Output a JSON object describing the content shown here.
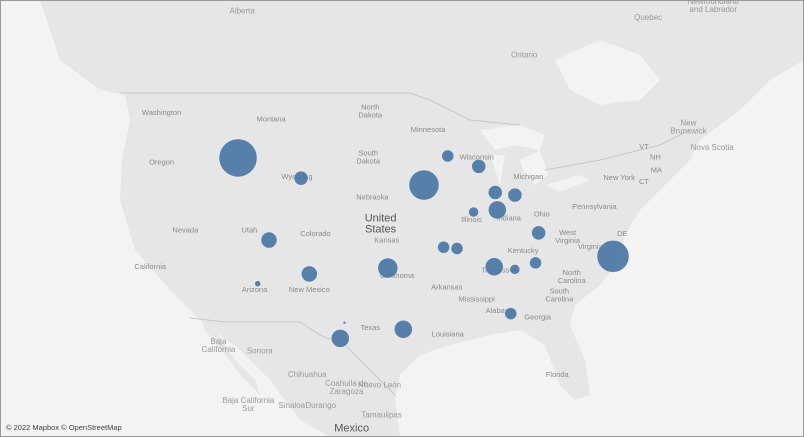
{
  "map": {
    "labels": [
      {
        "text": "Alberta",
        "lon": -111.6,
        "lat": 55.3,
        "kind": "region"
      },
      {
        "text": "Quebec",
        "lon": -72.3,
        "lat": 54.8,
        "kind": "region"
      },
      {
        "text": "Newfoundland\nand Labrador",
        "lon": -66.0,
        "lat": 55.7,
        "kind": "region"
      },
      {
        "text": "Ontario",
        "lon": -84.3,
        "lat": 51.9,
        "kind": "region"
      },
      {
        "text": "New\nBrunswick",
        "lon": -68.4,
        "lat": 46.4,
        "kind": "region"
      },
      {
        "text": "Nova Scotia",
        "lon": -66.1,
        "lat": 44.8,
        "kind": "region"
      },
      {
        "text": "Washington",
        "lon": -119.4,
        "lat": 47.5,
        "kind": "state"
      },
      {
        "text": "Montana",
        "lon": -108.8,
        "lat": 47.0,
        "kind": "state"
      },
      {
        "text": "North\nDakota",
        "lon": -99.2,
        "lat": 47.6,
        "kind": "state"
      },
      {
        "text": "Minnesota",
        "lon": -93.6,
        "lat": 46.2,
        "kind": "state"
      },
      {
        "text": "Oregon",
        "lon": -119.4,
        "lat": 43.7,
        "kind": "state"
      },
      {
        "text": "South\nDakota",
        "lon": -99.4,
        "lat": 44.1,
        "kind": "state"
      },
      {
        "text": "Wisconsin",
        "lon": -88.9,
        "lat": 44.1,
        "kind": "state"
      },
      {
        "text": "Michigan",
        "lon": -83.9,
        "lat": 42.6,
        "kind": "state"
      },
      {
        "text": "Wyoming",
        "lon": -106.3,
        "lat": 42.6,
        "kind": "state"
      },
      {
        "text": "Nebraska",
        "lon": -99.0,
        "lat": 41.0,
        "kind": "state"
      },
      {
        "text": "New York",
        "lon": -75.1,
        "lat": 42.5,
        "kind": "state"
      },
      {
        "text": "Pennsylvania",
        "lon": -77.5,
        "lat": 40.3,
        "kind": "state"
      },
      {
        "text": "Illinois",
        "lon": -89.4,
        "lat": 39.3,
        "kind": "state"
      },
      {
        "text": "Indiana",
        "lon": -85.8,
        "lat": 39.4,
        "kind": "state"
      },
      {
        "text": "Ohio",
        "lon": -82.6,
        "lat": 39.7,
        "kind": "state"
      },
      {
        "text": "Nevada",
        "lon": -117.1,
        "lat": 38.5,
        "kind": "state"
      },
      {
        "text": "Utah",
        "lon": -110.9,
        "lat": 38.5,
        "kind": "state"
      },
      {
        "text": "Colorado",
        "lon": -104.5,
        "lat": 38.2,
        "kind": "state"
      },
      {
        "text": "United\nStates",
        "lon": -98.2,
        "lat": 39.0,
        "kind": "country"
      },
      {
        "text": "Kansas",
        "lon": -97.6,
        "lat": 37.7,
        "kind": "state"
      },
      {
        "text": "Kentucky",
        "lon": -84.4,
        "lat": 36.9,
        "kind": "state"
      },
      {
        "text": "West\nVirginia",
        "lon": -80.1,
        "lat": 38.0,
        "kind": "state"
      },
      {
        "text": "Virginia",
        "lon": -77.9,
        "lat": 37.2,
        "kind": "state"
      },
      {
        "text": "California",
        "lon": -120.5,
        "lat": 35.7,
        "kind": "state"
      },
      {
        "text": "Oklahoma",
        "lon": -96.6,
        "lat": 35.0,
        "kind": "state"
      },
      {
        "text": "Tennessee",
        "lon": -86.7,
        "lat": 35.4,
        "kind": "state"
      },
      {
        "text": "North\nCarolina",
        "lon": -79.7,
        "lat": 34.9,
        "kind": "state"
      },
      {
        "text": "Arizona",
        "lon": -110.4,
        "lat": 33.9,
        "kind": "state"
      },
      {
        "text": "New Mexico",
        "lon": -105.1,
        "lat": 33.9,
        "kind": "state"
      },
      {
        "text": "Arkansas",
        "lon": -91.8,
        "lat": 34.1,
        "kind": "state"
      },
      {
        "text": "South\nCarolina",
        "lon": -80.9,
        "lat": 33.5,
        "kind": "state"
      },
      {
        "text": "Mississippi",
        "lon": -88.9,
        "lat": 33.2,
        "kind": "state"
      },
      {
        "text": "Alabama",
        "lon": -86.6,
        "lat": 32.3,
        "kind": "state"
      },
      {
        "text": "Georgia",
        "lon": -83.0,
        "lat": 31.8,
        "kind": "state"
      },
      {
        "text": "Texas",
        "lon": -99.2,
        "lat": 31.0,
        "kind": "state"
      },
      {
        "text": "Louisiana",
        "lon": -91.7,
        "lat": 30.5,
        "kind": "state"
      },
      {
        "text": "Florida",
        "lon": -81.1,
        "lat": 27.4,
        "kind": "state"
      },
      {
        "text": "VT",
        "lon": -72.7,
        "lat": 44.9,
        "kind": "state"
      },
      {
        "text": "NH",
        "lon": -71.6,
        "lat": 44.1,
        "kind": "state"
      },
      {
        "text": "MA",
        "lon": -71.5,
        "lat": 43.1,
        "kind": "state"
      },
      {
        "text": "CT",
        "lon": -72.7,
        "lat": 42.2,
        "kind": "state"
      },
      {
        "text": "DE",
        "lon": -74.8,
        "lat": 38.2,
        "kind": "state"
      },
      {
        "text": "Baja\nCalifornia",
        "lon": -113.9,
        "lat": 29.6,
        "kind": "region"
      },
      {
        "text": "Sonora",
        "lon": -109.9,
        "lat": 29.2,
        "kind": "region"
      },
      {
        "text": "Chihuahua",
        "lon": -105.3,
        "lat": 27.4,
        "kind": "region"
      },
      {
        "text": "Coahuila de\nZaragoza",
        "lon": -101.5,
        "lat": 26.4,
        "kind": "region"
      },
      {
        "text": "Nuevo León",
        "lon": -98.3,
        "lat": 26.6,
        "kind": "region"
      },
      {
        "text": "Baja California\nSur",
        "lon": -111.0,
        "lat": 25.1,
        "kind": "region"
      },
      {
        "text": "Sinaloa",
        "lon": -106.8,
        "lat": 25.0,
        "kind": "region"
      },
      {
        "text": "Durango",
        "lon": -104.0,
        "lat": 25.0,
        "kind": "region"
      },
      {
        "text": "Tamaulipas",
        "lon": -98.1,
        "lat": 24.3,
        "kind": "region"
      },
      {
        "text": "Mexico",
        "lon": -101.0,
        "lat": 23.3,
        "kind": "country"
      }
    ],
    "bubbles": [
      {
        "lon": -112.0,
        "lat": 44.05,
        "size": 361
      },
      {
        "lon": -105.9,
        "lat": 42.5,
        "size": 49
      },
      {
        "lon": -109.0,
        "lat": 37.75,
        "size": 64
      },
      {
        "lon": -105.1,
        "lat": 35.15,
        "size": 64
      },
      {
        "lon": -110.1,
        "lat": 34.4,
        "size": 9
      },
      {
        "lon": -94.0,
        "lat": 41.97,
        "size": 225
      },
      {
        "lon": -91.7,
        "lat": 44.2,
        "size": 36
      },
      {
        "lon": -88.7,
        "lat": 43.4,
        "size": 49
      },
      {
        "lon": -87.1,
        "lat": 41.4,
        "size": 49
      },
      {
        "lon": -85.2,
        "lat": 41.2,
        "size": 49
      },
      {
        "lon": -89.2,
        "lat": 39.9,
        "size": 25
      },
      {
        "lon": -86.9,
        "lat": 40.06,
        "size": 81
      },
      {
        "lon": -82.9,
        "lat": 38.3,
        "size": 49
      },
      {
        "lon": -97.5,
        "lat": 35.6,
        "size": 100
      },
      {
        "lon": -92.1,
        "lat": 37.2,
        "size": 36
      },
      {
        "lon": -90.8,
        "lat": 37.1,
        "size": 36
      },
      {
        "lon": -87.2,
        "lat": 35.7,
        "size": 81
      },
      {
        "lon": -85.2,
        "lat": 35.5,
        "size": 25
      },
      {
        "lon": -83.2,
        "lat": 36.0,
        "size": 36
      },
      {
        "lon": -75.7,
        "lat": 36.5,
        "size": 256
      },
      {
        "lon": -85.6,
        "lat": 32.1,
        "size": 36
      },
      {
        "lon": -96.0,
        "lat": 30.9,
        "size": 81
      },
      {
        "lon": -102.1,
        "lat": 30.2,
        "size": 81
      },
      {
        "lon": -101.7,
        "lat": 31.4,
        "size": 2
      }
    ],
    "bubble_color": "#4e79a7",
    "attribution": "© 2022 Mapbox © OpenStreetMap"
  }
}
